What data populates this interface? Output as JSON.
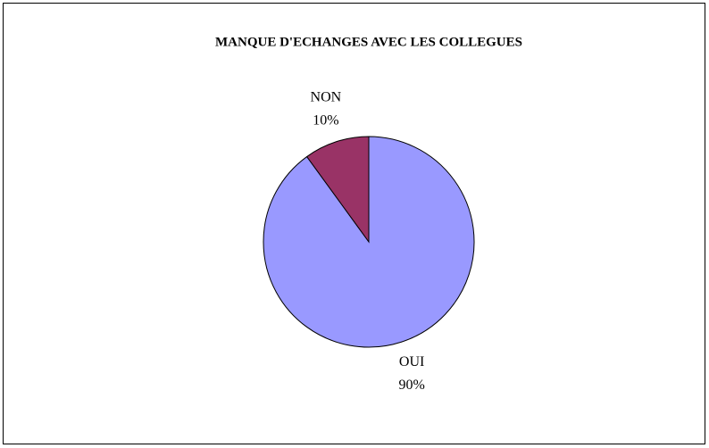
{
  "chart_data": {
    "type": "pie",
    "title": "MANQUE D'ECHANGES AVEC LES COLLEGUES",
    "categories": [
      "OUI",
      "NON"
    ],
    "values": [
      90,
      10
    ],
    "value_labels": [
      "90%",
      "10%"
    ],
    "colors": [
      "#9999ff",
      "#993366"
    ]
  }
}
